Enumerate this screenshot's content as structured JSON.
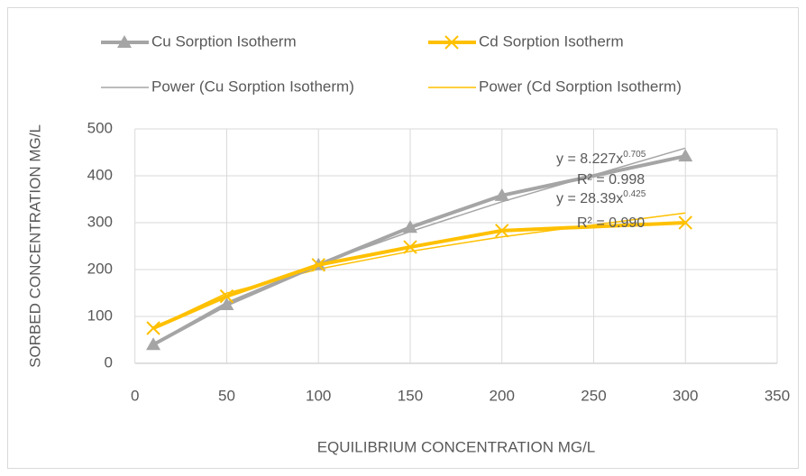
{
  "chart_data": {
    "type": "line",
    "x_label": "EQUILIBRIUM CONCENTRATION MG/L",
    "y_label": "SORBED CONCENTRATION MG/L",
    "xlim": [
      0,
      350
    ],
    "xticks": [
      0,
      50,
      100,
      150,
      200,
      250,
      300,
      350
    ],
    "ylim": [
      0,
      500
    ],
    "yticks": [
      0,
      100,
      200,
      300,
      400,
      500
    ],
    "grid": true,
    "series": [
      {
        "name": "Cu Sorption Isotherm",
        "color": "#a5a5a5",
        "marker": "triangle",
        "x": [
          10,
          50,
          100,
          150,
          200,
          300
        ],
        "values": [
          40,
          125,
          210,
          290,
          358,
          442
        ]
      },
      {
        "name": "Cd Sorption Isotherm",
        "color": "#ffc000",
        "marker": "x",
        "x": [
          10,
          50,
          100,
          150,
          200,
          300
        ],
        "values": [
          75,
          143,
          210,
          248,
          283,
          300
        ]
      },
      {
        "name": "Power (Cu Sorption Isotherm)",
        "color": "#a5a5a5",
        "marker": "none",
        "x": [
          10,
          50,
          100,
          150,
          200,
          300
        ],
        "values": [
          41.7,
          129.7,
          211.5,
          281,
          344.6,
          459
        ]
      },
      {
        "name": "Power (Cd Sorption Isotherm)",
        "color": "#ffc000",
        "marker": "none",
        "x": [
          10,
          50,
          100,
          150,
          200,
          300
        ],
        "values": [
          75.5,
          149.7,
          201,
          238.8,
          269.8,
          320.6
        ]
      }
    ],
    "annotations": [
      {
        "text": "y = 8.227x",
        "sup": "0.705"
      },
      {
        "text": "R² = 0.998"
      },
      {
        "text": "y = 28.39x",
        "sup": "0.425"
      },
      {
        "text": "R² = 0.990"
      }
    ]
  }
}
